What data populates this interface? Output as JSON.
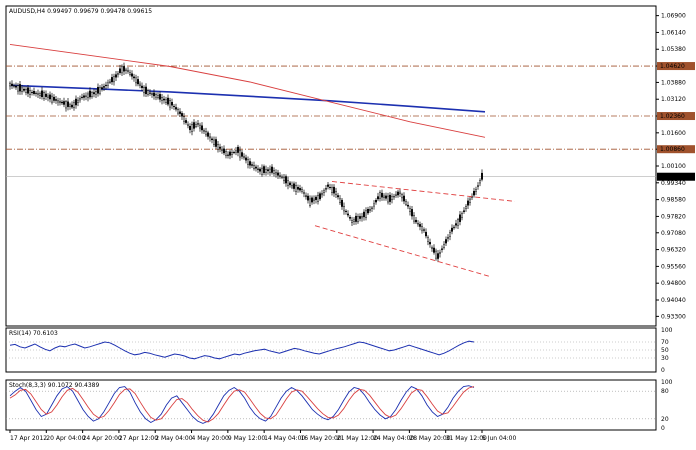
{
  "chart_data": [
    {
      "type": "candlestick",
      "title": "AUDUSD,H4  0.99497 0.99679 0.99478 0.99615",
      "symbol": "AUDUSD",
      "timeframe": "H4",
      "ohlc_readout": {
        "open": 0.99497,
        "high": 0.99679,
        "low": 0.99478,
        "close": 0.99615
      },
      "ylim": [
        0.93,
        1.072
      ],
      "y_ticks": [
        "1.06900",
        "1.06140",
        "1.05380",
        "1.04620",
        "1.03880",
        "1.03120",
        "1.02360",
        "1.01600",
        "1.00860",
        "1.00100",
        "0.99340",
        "0.98580",
        "0.97820",
        "0.97080",
        "0.96320",
        "0.95560",
        "0.94800",
        "0.94040",
        "0.93300"
      ],
      "highlighted_levels": [
        {
          "value": 1.0462,
          "label": "1.04620"
        },
        {
          "value": 1.0236,
          "label": "1.02360"
        },
        {
          "value": 1.0086,
          "label": "1.00860"
        }
      ],
      "current_price": {
        "value": 0.99615,
        "label": "0.99615"
      },
      "x_ticks": [
        "17 Apr 2012",
        "20 Apr 04:00",
        "24 Apr 20:00",
        "27 Apr 12:00",
        "2 May 04:00",
        "4 May 20:00",
        "9 May 12:00",
        "14 May 04:00",
        "16 May 20:00",
        "21 May 12:00",
        "24 May 04:00",
        "28 May 20:00",
        "31 May 12:00",
        "5 Jun 04:00"
      ],
      "price_path": [
        [
          0,
          1.038
        ],
        [
          10,
          1.036
        ],
        [
          20,
          1.0345
        ],
        [
          35,
          1.033
        ],
        [
          50,
          1.03
        ],
        [
          62,
          1.028
        ],
        [
          72,
          1.032
        ],
        [
          85,
          1.034
        ],
        [
          95,
          1.037
        ],
        [
          105,
          1.041
        ],
        [
          112,
          1.045
        ],
        [
          118,
          1.044
        ],
        [
          126,
          1.04
        ],
        [
          135,
          1.035
        ],
        [
          150,
          1.032
        ],
        [
          162,
          1.029
        ],
        [
          172,
          1.024
        ],
        [
          180,
          1.018
        ],
        [
          188,
          1.02
        ],
        [
          198,
          1.015
        ],
        [
          208,
          1.01
        ],
        [
          218,
          1.006
        ],
        [
          228,
          1.008
        ],
        [
          240,
          1.002
        ],
        [
          250,
          0.999
        ],
        [
          262,
          0.999
        ],
        [
          272,
          0.996
        ],
        [
          282,
          0.992
        ],
        [
          292,
          0.99
        ],
        [
          300,
          0.985
        ],
        [
          310,
          0.987
        ],
        [
          318,
          0.992
        ],
        [
          326,
          0.989
        ],
        [
          334,
          0.982
        ],
        [
          342,
          0.976
        ],
        [
          352,
          0.978
        ],
        [
          362,
          0.982
        ],
        [
          370,
          0.988
        ],
        [
          380,
          0.986
        ],
        [
          390,
          0.989
        ],
        [
          398,
          0.983
        ],
        [
          406,
          0.976
        ],
        [
          414,
          0.972
        ],
        [
          422,
          0.964
        ],
        [
          428,
          0.96
        ],
        [
          434,
          0.965
        ],
        [
          442,
          0.972
        ],
        [
          450,
          0.977
        ],
        [
          458,
          0.984
        ],
        [
          466,
          0.99
        ],
        [
          472,
          0.996
        ]
      ],
      "series": [
        {
          "name": "",
          "kind": "moving-average",
          "color": "#1c30b0",
          "points": [
            [
              0,
              1.0375
            ],
            [
              80,
              1.036
            ],
            [
              160,
              1.0345
            ],
            [
              240,
              1.0325
            ],
            [
              320,
              1.0305
            ],
            [
              400,
              1.028
            ],
            [
              475,
              1.0255
            ]
          ]
        },
        {
          "name": "",
          "kind": "moving-average",
          "color": "#d94040",
          "points": [
            [
              0,
              1.056
            ],
            [
              80,
              1.051
            ],
            [
              160,
              1.046
            ],
            [
              240,
              1.039
            ],
            [
              320,
              1.03
            ],
            [
              400,
              1.021
            ],
            [
              475,
              1.014
            ]
          ]
        }
      ],
      "trendlines": [
        {
          "color": "#e04040",
          "style": "dashed",
          "points": [
            [
              322,
              0.994
            ],
            [
              505,
              0.985
            ]
          ]
        },
        {
          "color": "#e04040",
          "style": "dashed",
          "points": [
            [
              305,
              0.974
            ],
            [
              480,
              0.951
            ]
          ]
        }
      ],
      "grid": false
    },
    {
      "type": "line",
      "title": "RSI(14) 70.6103",
      "indicator": "RSI",
      "period": 14,
      "value": 70.6103,
      "ylim": [
        0,
        100
      ],
      "y_ticks": [
        "100",
        "70",
        "50",
        "30",
        "0"
      ],
      "levels": [
        70,
        50,
        30
      ],
      "color": "#1c30b0",
      "values": [
        62,
        64,
        58,
        55,
        60,
        65,
        58,
        52,
        48,
        55,
        60,
        58,
        62,
        65,
        60,
        55,
        58,
        62,
        66,
        70,
        68,
        62,
        55,
        48,
        42,
        38,
        40,
        44,
        42,
        38,
        35,
        32,
        36,
        40,
        38,
        35,
        30,
        28,
        32,
        36,
        34,
        30,
        28,
        32,
        36,
        40,
        38,
        42,
        45,
        48,
        50,
        52,
        48,
        45,
        42,
        46,
        50,
        54,
        52,
        48,
        45,
        42,
        40,
        44,
        48,
        52,
        55,
        58,
        62,
        66,
        70,
        68,
        64,
        60,
        56,
        52,
        48,
        50,
        54,
        58,
        62,
        58,
        54,
        50,
        46,
        42,
        38,
        42,
        48,
        55,
        62,
        68,
        72,
        70
      ]
    },
    {
      "type": "line",
      "title": "Stoch(8,3,3) 90.1072 90.4389",
      "indicator": "Stochastic",
      "params": [
        8,
        3,
        3
      ],
      "main_value": 90.1072,
      "signal_value": 90.4389,
      "ylim": [
        0,
        100
      ],
      "y_ticks": [
        "100",
        "80",
        "20",
        "0"
      ],
      "levels": [
        80,
        20
      ],
      "series": [
        {
          "name": "",
          "color": "#1c30b0",
          "values": [
            70,
            80,
            88,
            80,
            60,
            40,
            25,
            30,
            50,
            70,
            85,
            90,
            80,
            60,
            40,
            25,
            15,
            20,
            35,
            55,
            75,
            88,
            90,
            78,
            55,
            35,
            20,
            12,
            18,
            30,
            50,
            65,
            70,
            55,
            40,
            25,
            15,
            10,
            15,
            30,
            50,
            70,
            82,
            88,
            80,
            65,
            45,
            30,
            20,
            15,
            25,
            45,
            65,
            80,
            88,
            82,
            70,
            55,
            40,
            30,
            22,
            18,
            25,
            40,
            60,
            78,
            88,
            85,
            72,
            55,
            40,
            28,
            20,
            25,
            40,
            60,
            78,
            90,
            85,
            70,
            50,
            35,
            25,
            30,
            45,
            65,
            80,
            90,
            92,
            88
          ]
        },
        {
          "name": "",
          "color": "#d94040",
          "values": [
            65,
            72,
            82,
            84,
            74,
            57,
            40,
            30,
            35,
            50,
            68,
            82,
            86,
            78,
            62,
            45,
            30,
            22,
            25,
            38,
            55,
            73,
            84,
            85,
            75,
            56,
            38,
            23,
            17,
            20,
            33,
            48,
            62,
            64,
            55,
            40,
            27,
            17,
            13,
            20,
            32,
            50,
            67,
            80,
            83,
            78,
            63,
            47,
            32,
            22,
            20,
            28,
            45,
            63,
            78,
            83,
            80,
            68,
            55,
            42,
            31,
            23,
            22,
            28,
            42,
            60,
            75,
            84,
            82,
            71,
            56,
            41,
            29,
            23,
            28,
            42,
            59,
            76,
            84,
            82,
            68,
            52,
            37,
            30,
            33,
            47,
            63,
            78,
            87,
            90
          ]
        }
      ]
    }
  ]
}
